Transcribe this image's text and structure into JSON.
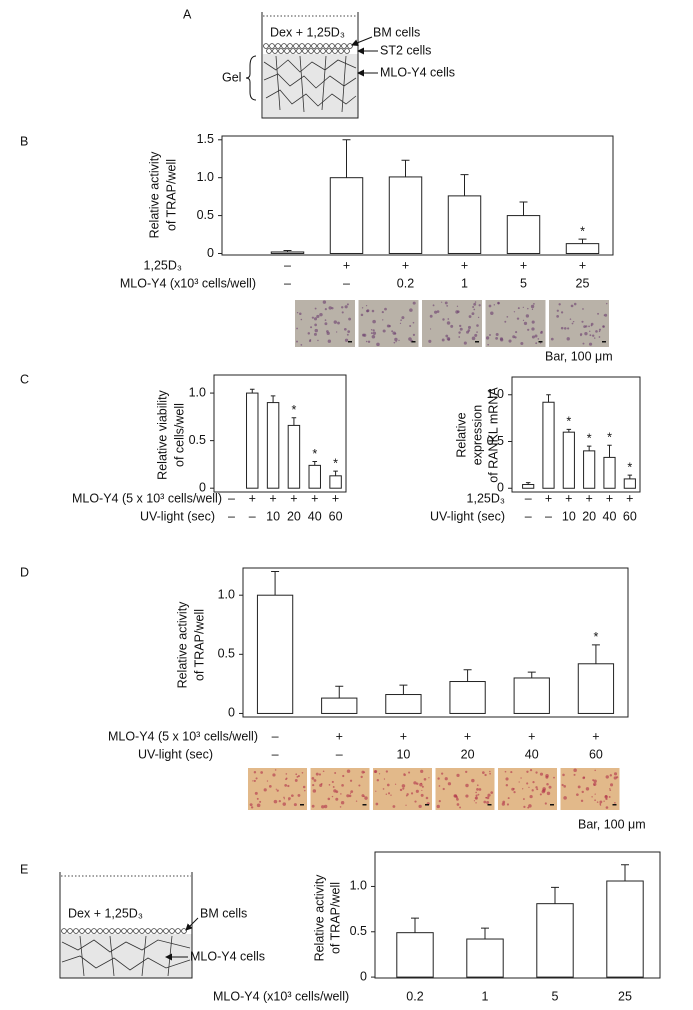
{
  "diagrams": {
    "a": {
      "label": "A",
      "medium": "Dex + 1,25D₃",
      "bm": "BM cells",
      "st2": "ST2 cells",
      "mlo": "MLO-Y4 cells",
      "gel": "Gel"
    },
    "e": {
      "medium": "Dex + 1,25D₃",
      "bm": "BM cells",
      "mlo": "MLO-Y4 cells"
    }
  },
  "chart_data": [
    {
      "type": "bar",
      "panel": "B",
      "ylabel": [
        "Relative activity",
        "of TRAP/well"
      ],
      "values": [
        0.02,
        1.0,
        1.01,
        0.76,
        0.5,
        0.13
      ],
      "errors": [
        0.02,
        0.5,
        0.22,
        0.28,
        0.18,
        0.06
      ],
      "annotations": [
        {
          "index": 5,
          "text": "*"
        }
      ],
      "conditions": [
        {
          "label": "1,25D₃",
          "values": [
            "–",
            "+",
            "+",
            "+",
            "+",
            "+"
          ]
        },
        {
          "label": "MLO-Y4 (x10³ cells/well)",
          "values": [
            "–",
            "–",
            "0.2",
            "1",
            "5",
            "25"
          ]
        }
      ],
      "scale_bar": "Bar, 100 μm",
      "ylim": [
        -0.02,
        1.55
      ],
      "yticks": [
        0,
        0.5,
        {
          "value": 1,
          "label": "1.0"
        },
        1.5
      ],
      "color": "#ffffff"
    },
    {
      "type": "bar",
      "panel": "C",
      "ylabel": [
        "Relative  viability",
        "of  cells/well"
      ],
      "values": [
        null,
        1.0,
        0.9,
        0.66,
        0.24,
        0.13
      ],
      "errors": [
        null,
        0.04,
        0.07,
        0.08,
        0.04,
        0.05
      ],
      "annotations": [
        {
          "index": 3,
          "text": "*"
        },
        {
          "index": 4,
          "text": "*"
        },
        {
          "index": 5,
          "text": "*"
        }
      ],
      "conditions": [
        {
          "label": "MLO-Y4 (5 x 10³ cells/well)",
          "values": [
            "–",
            "+",
            "+",
            "+",
            "+",
            "+"
          ]
        },
        {
          "label": "UV-light (sec)",
          "values": [
            "–",
            "–",
            "10",
            "20",
            "40",
            "60"
          ]
        }
      ],
      "ylim": [
        -0.04,
        1.19
      ],
      "yticks": [
        0,
        0.5,
        {
          "value": 1,
          "label": "1.0"
        }
      ],
      "color": "#ffffff"
    },
    {
      "type": "bar",
      "ylabel": [
        "Relative",
        "expression",
        "of RANKL mRNA"
      ],
      "values": [
        0.04,
        0.92,
        0.6,
        0.4,
        0.33,
        0.1
      ],
      "errors": [
        0.02,
        0.08,
        0.03,
        0.05,
        0.13,
        0.04
      ],
      "annotations": [
        {
          "index": 2,
          "text": "*"
        },
        {
          "index": 3,
          "text": "*"
        },
        {
          "index": 4,
          "text": "*"
        },
        {
          "index": 5,
          "text": "*"
        }
      ],
      "conditions": [
        {
          "label": "1,25D₃",
          "values": [
            "–",
            "+",
            "+",
            "+",
            "+",
            "+"
          ]
        },
        {
          "label": "UV-light (sec)",
          "values": [
            "–",
            "–",
            "10",
            "20",
            "40",
            "60"
          ]
        }
      ],
      "ylim": [
        -0.04,
        1.19
      ],
      "yticks": [
        0,
        0.5,
        {
          "value": 1,
          "label": "1.0"
        }
      ],
      "color": "#ffffff"
    },
    {
      "type": "bar",
      "panel": "D",
      "ylabel": [
        "Relative activity",
        "of TRAP/well"
      ],
      "values": [
        1.0,
        0.13,
        0.16,
        0.27,
        0.3,
        0.42
      ],
      "errors": [
        0.2,
        0.1,
        0.08,
        0.1,
        0.05,
        0.16
      ],
      "annotations": [
        {
          "index": 5,
          "text": "*"
        }
      ],
      "conditions": [
        {
          "label": "MLO-Y4 (5 x 10³ cells/well)",
          "values": [
            "–",
            "+",
            "+",
            "+",
            "+",
            "+"
          ]
        },
        {
          "label": "UV-light (sec)",
          "values": [
            "–",
            "–",
            "10",
            "20",
            "40",
            "60"
          ]
        }
      ],
      "scale_bar": "Bar, 100 μm",
      "ylim": [
        -0.03,
        1.23
      ],
      "yticks": [
        0,
        0.5,
        {
          "value": 1,
          "label": "1.0"
        }
      ],
      "color": "#ffffff"
    },
    {
      "type": "bar",
      "panel": "E",
      "ylabel": [
        "Relative activity",
        "of TRAP/well"
      ],
      "xlabel": "MLO-Y4 (x10³ cells/well)",
      "categories": [
        "0.2",
        "1",
        "5",
        "25"
      ],
      "values": [
        0.49,
        0.42,
        0.81,
        1.06
      ],
      "errors": [
        0.16,
        0.12,
        0.18,
        0.18
      ],
      "ylim": [
        -0.01,
        1.38
      ],
      "yticks": [
        0,
        0.5,
        {
          "value": 1,
          "label": "1.0"
        }
      ],
      "color": "#ffffff"
    }
  ]
}
